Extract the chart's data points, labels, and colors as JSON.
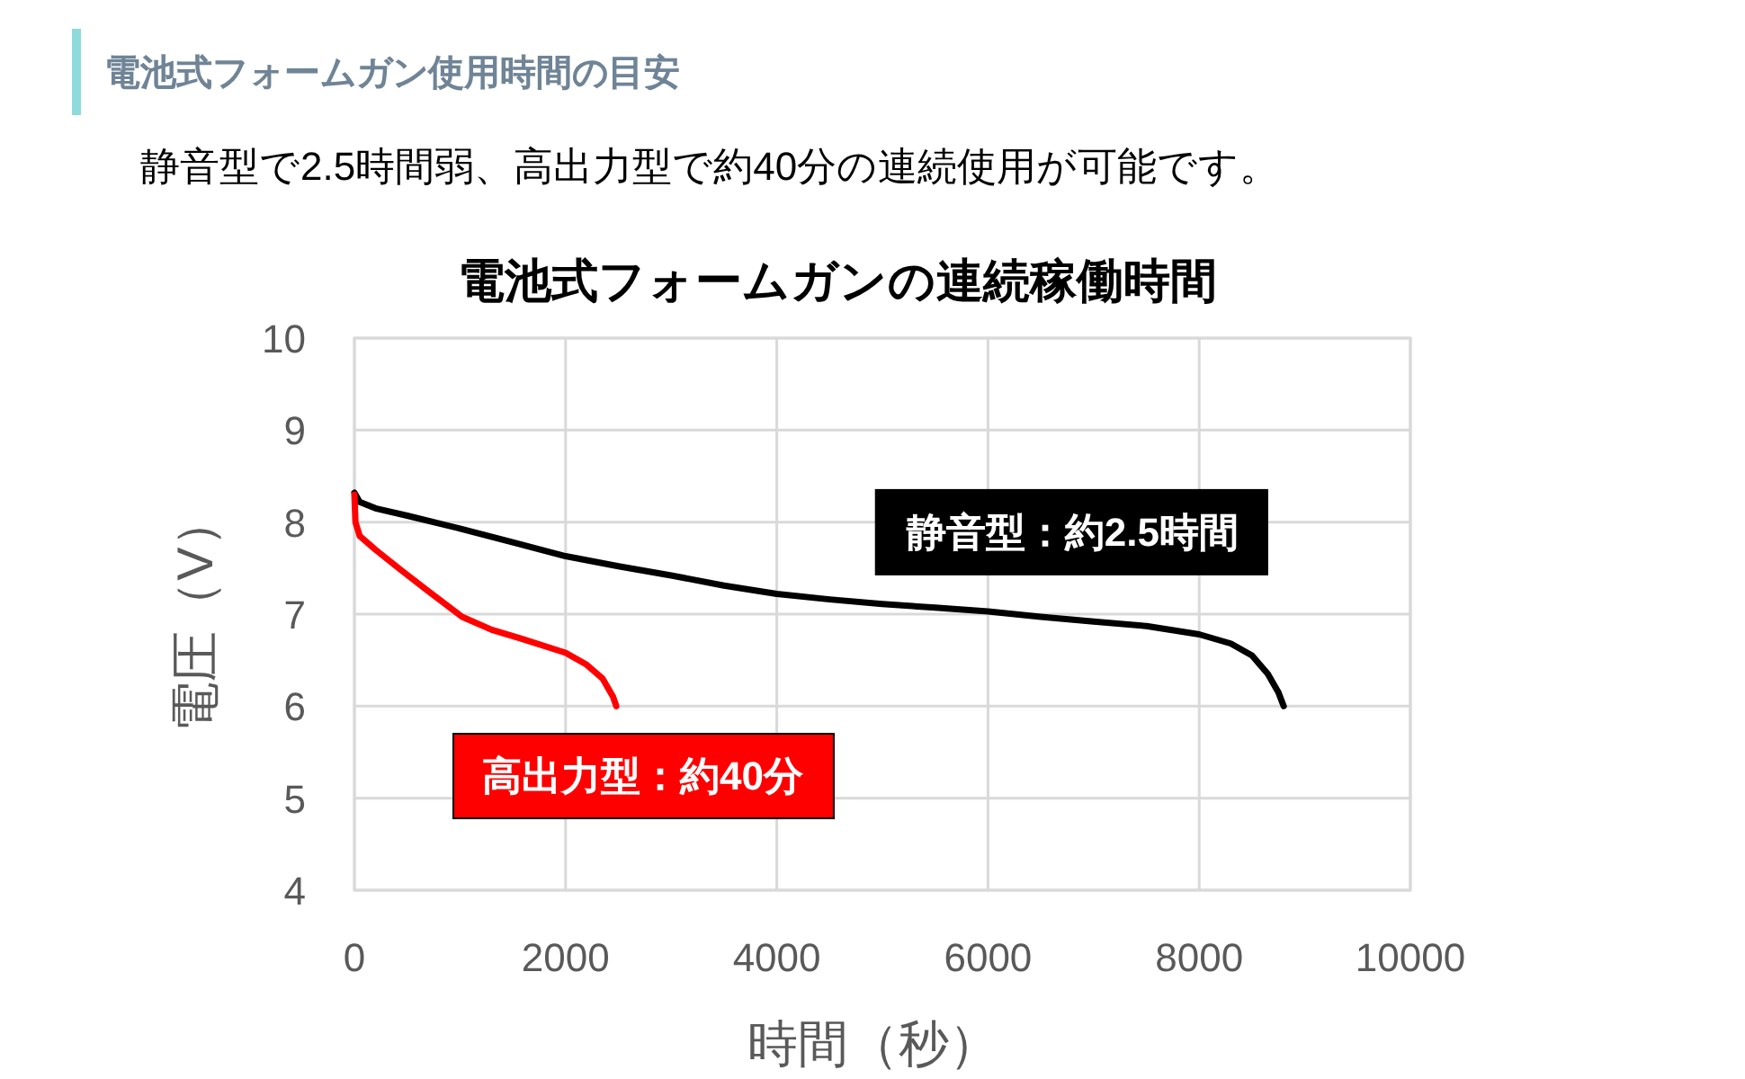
{
  "chart_data": {
    "type": "line",
    "title": "電池式フォームガンの連続稼働時間",
    "subtitle": "静音型で2.5時間弱、高出力型で約40分の連続使用が可能です。",
    "annotations": [
      "電池式フォームガン使用時間の目安"
    ],
    "xlabel": "時間（秒）",
    "ylabel": "電圧（V）",
    "xlim": [
      0,
      10000
    ],
    "xticks": [
      0,
      2000,
      4000,
      6000,
      8000,
      10000
    ],
    "ylim": [
      4,
      10
    ],
    "yticks": [
      4,
      5,
      6,
      7,
      8,
      9,
      10
    ],
    "grid": true,
    "marker": "none",
    "line_style": "solid",
    "series": [
      {
        "name": "静音型：約2.5時間",
        "color": "#000000",
        "x": [
          0,
          50,
          200,
          500,
          1000,
          1500,
          2000,
          2500,
          3000,
          3500,
          4000,
          4500,
          5000,
          5500,
          6000,
          6500,
          7000,
          7500,
          8000,
          8300,
          8500,
          8650,
          8750,
          8800
        ],
        "values": [
          8.32,
          8.22,
          8.15,
          8.07,
          7.93,
          7.78,
          7.63,
          7.52,
          7.42,
          7.31,
          7.22,
          7.16,
          7.11,
          7.07,
          7.03,
          6.97,
          6.92,
          6.87,
          6.78,
          6.68,
          6.55,
          6.35,
          6.15,
          6.0
        ]
      },
      {
        "name": "高出力型：約40分",
        "color": "#ff0000",
        "x": [
          0,
          10,
          50,
          200,
          440,
          700,
          1020,
          1300,
          1590,
          2000,
          2200,
          2350,
          2450,
          2480
        ],
        "values": [
          8.3,
          8.0,
          7.85,
          7.7,
          7.48,
          7.25,
          6.97,
          6.83,
          6.73,
          6.58,
          6.45,
          6.3,
          6.1,
          6.0
        ]
      }
    ]
  }
}
